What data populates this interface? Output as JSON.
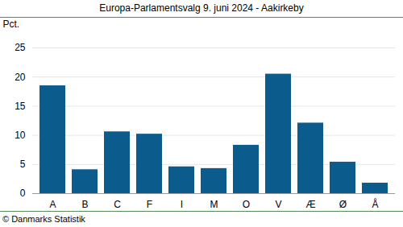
{
  "chart_data": {
    "type": "bar",
    "title": "Europa-Parlamentsvalg 9. juni 2024 - Aakirkeby",
    "y_label": "Pct.",
    "caption": "© Danmarks Statistik",
    "categories": [
      "A",
      "B",
      "C",
      "F",
      "I",
      "M",
      "O",
      "V",
      "Æ",
      "Ø",
      "Å"
    ],
    "values": [
      18.5,
      4.1,
      10.6,
      10.2,
      4.6,
      4.3,
      8.3,
      20.5,
      12.1,
      5.4,
      1.8
    ],
    "color": "#0b5b8c",
    "ylim": [
      0,
      25
    ],
    "yticks": [
      0,
      5,
      10,
      15,
      20,
      25
    ],
    "grid": true
  }
}
